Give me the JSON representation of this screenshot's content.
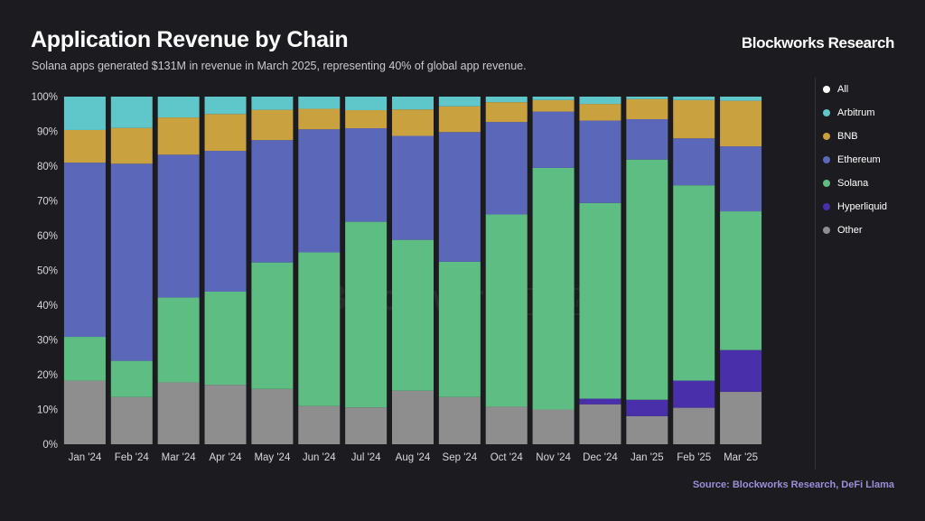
{
  "header": {
    "title": "Application Revenue by Chain",
    "subtitle": "Solana apps generated $131M in revenue in March 2025, representing 40% of global app revenue.",
    "brand": "Blockworks Research"
  },
  "footer": {
    "source": "Source: Blockworks Research, DeFi Llama"
  },
  "watermark": {
    "main": "Blockworks",
    "sub": "Research"
  },
  "legend": [
    {
      "name": "All",
      "color": "#ffffff"
    },
    {
      "name": "Arbitrum",
      "color": "#5fc7c9"
    },
    {
      "name": "BNB",
      "color": "#c9a13f"
    },
    {
      "name": "Ethereum",
      "color": "#5b67b9"
    },
    {
      "name": "Solana",
      "color": "#5dbd82"
    },
    {
      "name": "Hyperliquid",
      "color": "#4a2fab"
    },
    {
      "name": "Other",
      "color": "#8e8e8e"
    }
  ],
  "chart_data": {
    "type": "bar",
    "stacked": true,
    "categories": [
      "Jan '24",
      "Feb '24",
      "Mar '24",
      "Apr '24",
      "May '24",
      "Jun '24",
      "Jul '24",
      "Aug '24",
      "Sep '24",
      "Oct '24",
      "Nov '24",
      "Dec '24",
      "Jan '25",
      "Feb '25",
      "Mar '25"
    ],
    "yticks": [
      "0%",
      "10%",
      "20%",
      "30%",
      "40%",
      "50%",
      "60%",
      "70%",
      "80%",
      "90%",
      "100%"
    ],
    "ylim": [
      0,
      100
    ],
    "series": [
      {
        "name": "Other",
        "color": "#8e8e8e",
        "values": [
          18.3,
          13.6,
          17.8,
          17.1,
          15.9,
          11.0,
          10.6,
          15.4,
          13.6,
          10.8,
          10.0,
          11.5,
          8.1,
          10.5,
          15.1
        ]
      },
      {
        "name": "Hyperliquid",
        "color": "#4a2fab",
        "values": [
          0,
          0,
          0,
          0,
          0,
          0,
          0,
          0,
          0,
          0,
          0,
          1.6,
          4.7,
          7.8,
          12.0
        ]
      },
      {
        "name": "Solana",
        "color": "#5dbd82",
        "values": [
          12.6,
          10.4,
          24.4,
          26.8,
          36.4,
          44.2,
          53.4,
          43.4,
          38.9,
          55.3,
          69.5,
          56.3,
          69.1,
          56.2,
          39.9
        ]
      },
      {
        "name": "Ethereum",
        "color": "#5b67b9",
        "values": [
          50.1,
          56.7,
          41.1,
          40.5,
          35.2,
          35.4,
          26.9,
          29.9,
          37.3,
          26.6,
          16.2,
          23.7,
          11.6,
          13.5,
          18.7
        ]
      },
      {
        "name": "BNB",
        "color": "#c9a13f",
        "values": [
          9.4,
          10.3,
          10.7,
          10.6,
          8.7,
          5.9,
          5.2,
          7.6,
          7.4,
          5.7,
          3.3,
          4.8,
          5.8,
          11.0,
          13.1
        ]
      },
      {
        "name": "Arbitrum",
        "color": "#5fc7c9",
        "values": [
          9.6,
          9.0,
          6.0,
          5.0,
          3.8,
          3.5,
          3.9,
          3.7,
          2.8,
          1.6,
          1.0,
          2.1,
          0.7,
          1.0,
          1.2
        ]
      }
    ]
  }
}
